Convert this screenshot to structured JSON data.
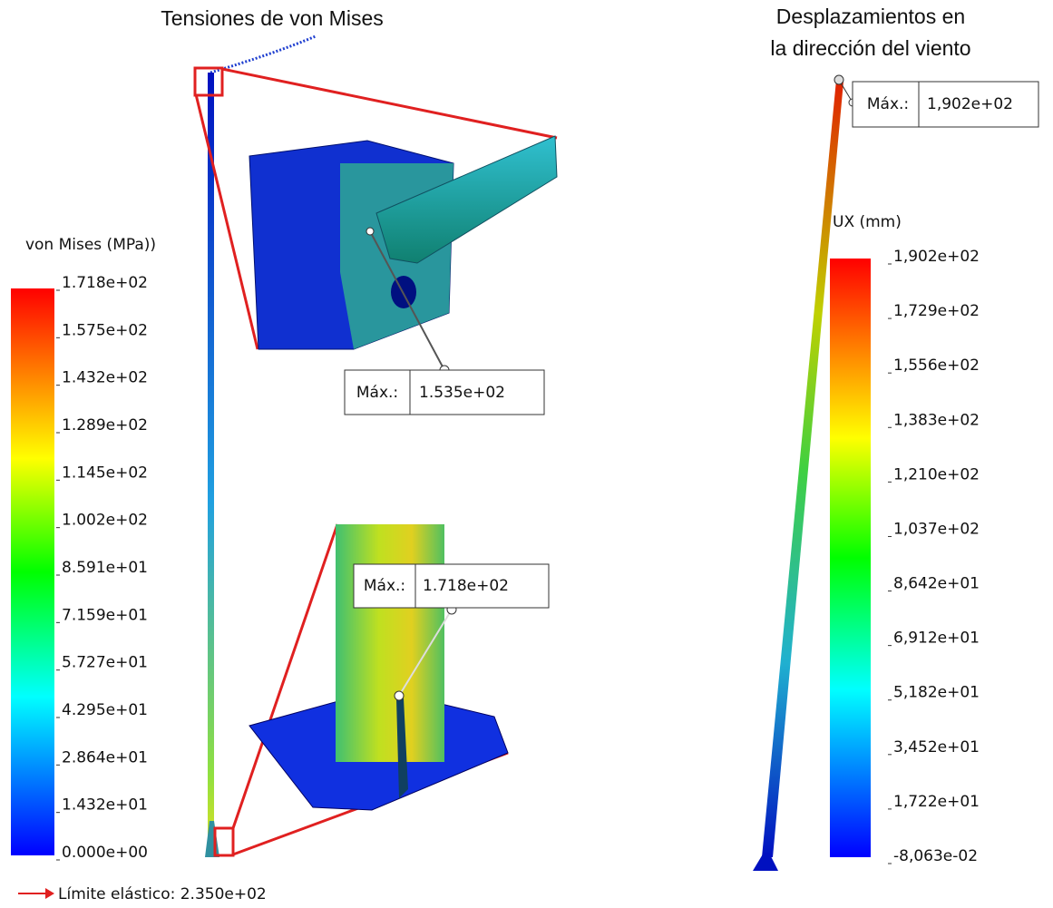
{
  "left": {
    "title": "Tensiones de von Mises",
    "legend_title": "von Mises (MPa))",
    "ticks": [
      "1.718e+02",
      "1.575e+02",
      "1.432e+02",
      "1.289e+02",
      "1.145e+02",
      "1.002e+02",
      "8.591e+01",
      "7.159e+01",
      "5.727e+01",
      "4.295e+01",
      "2.864e+01",
      "1.432e+01",
      "0.000e+00"
    ],
    "callouts": [
      {
        "label": "Máx.:",
        "value": "1.535e+02"
      },
      {
        "label": "Máx.:",
        "value": "1.718e+02"
      }
    ],
    "yield_note": "Límite elástico: 2.350e+02"
  },
  "right": {
    "title_lines": [
      "Desplazamientos en",
      "la dirección del viento"
    ],
    "legend_title": "UX (mm)",
    "ticks": [
      "1,902e+02",
      "1,729e+02",
      "1,556e+02",
      "1,383e+02",
      "1,210e+02",
      "1,037e+02",
      "8,642e+01",
      "6,912e+01",
      "5,182e+01",
      "3,452e+01",
      "1,722e+01",
      "-8,063e-02"
    ],
    "callout": {
      "label": "Máx.:",
      "value": "1,902e+02"
    }
  }
}
